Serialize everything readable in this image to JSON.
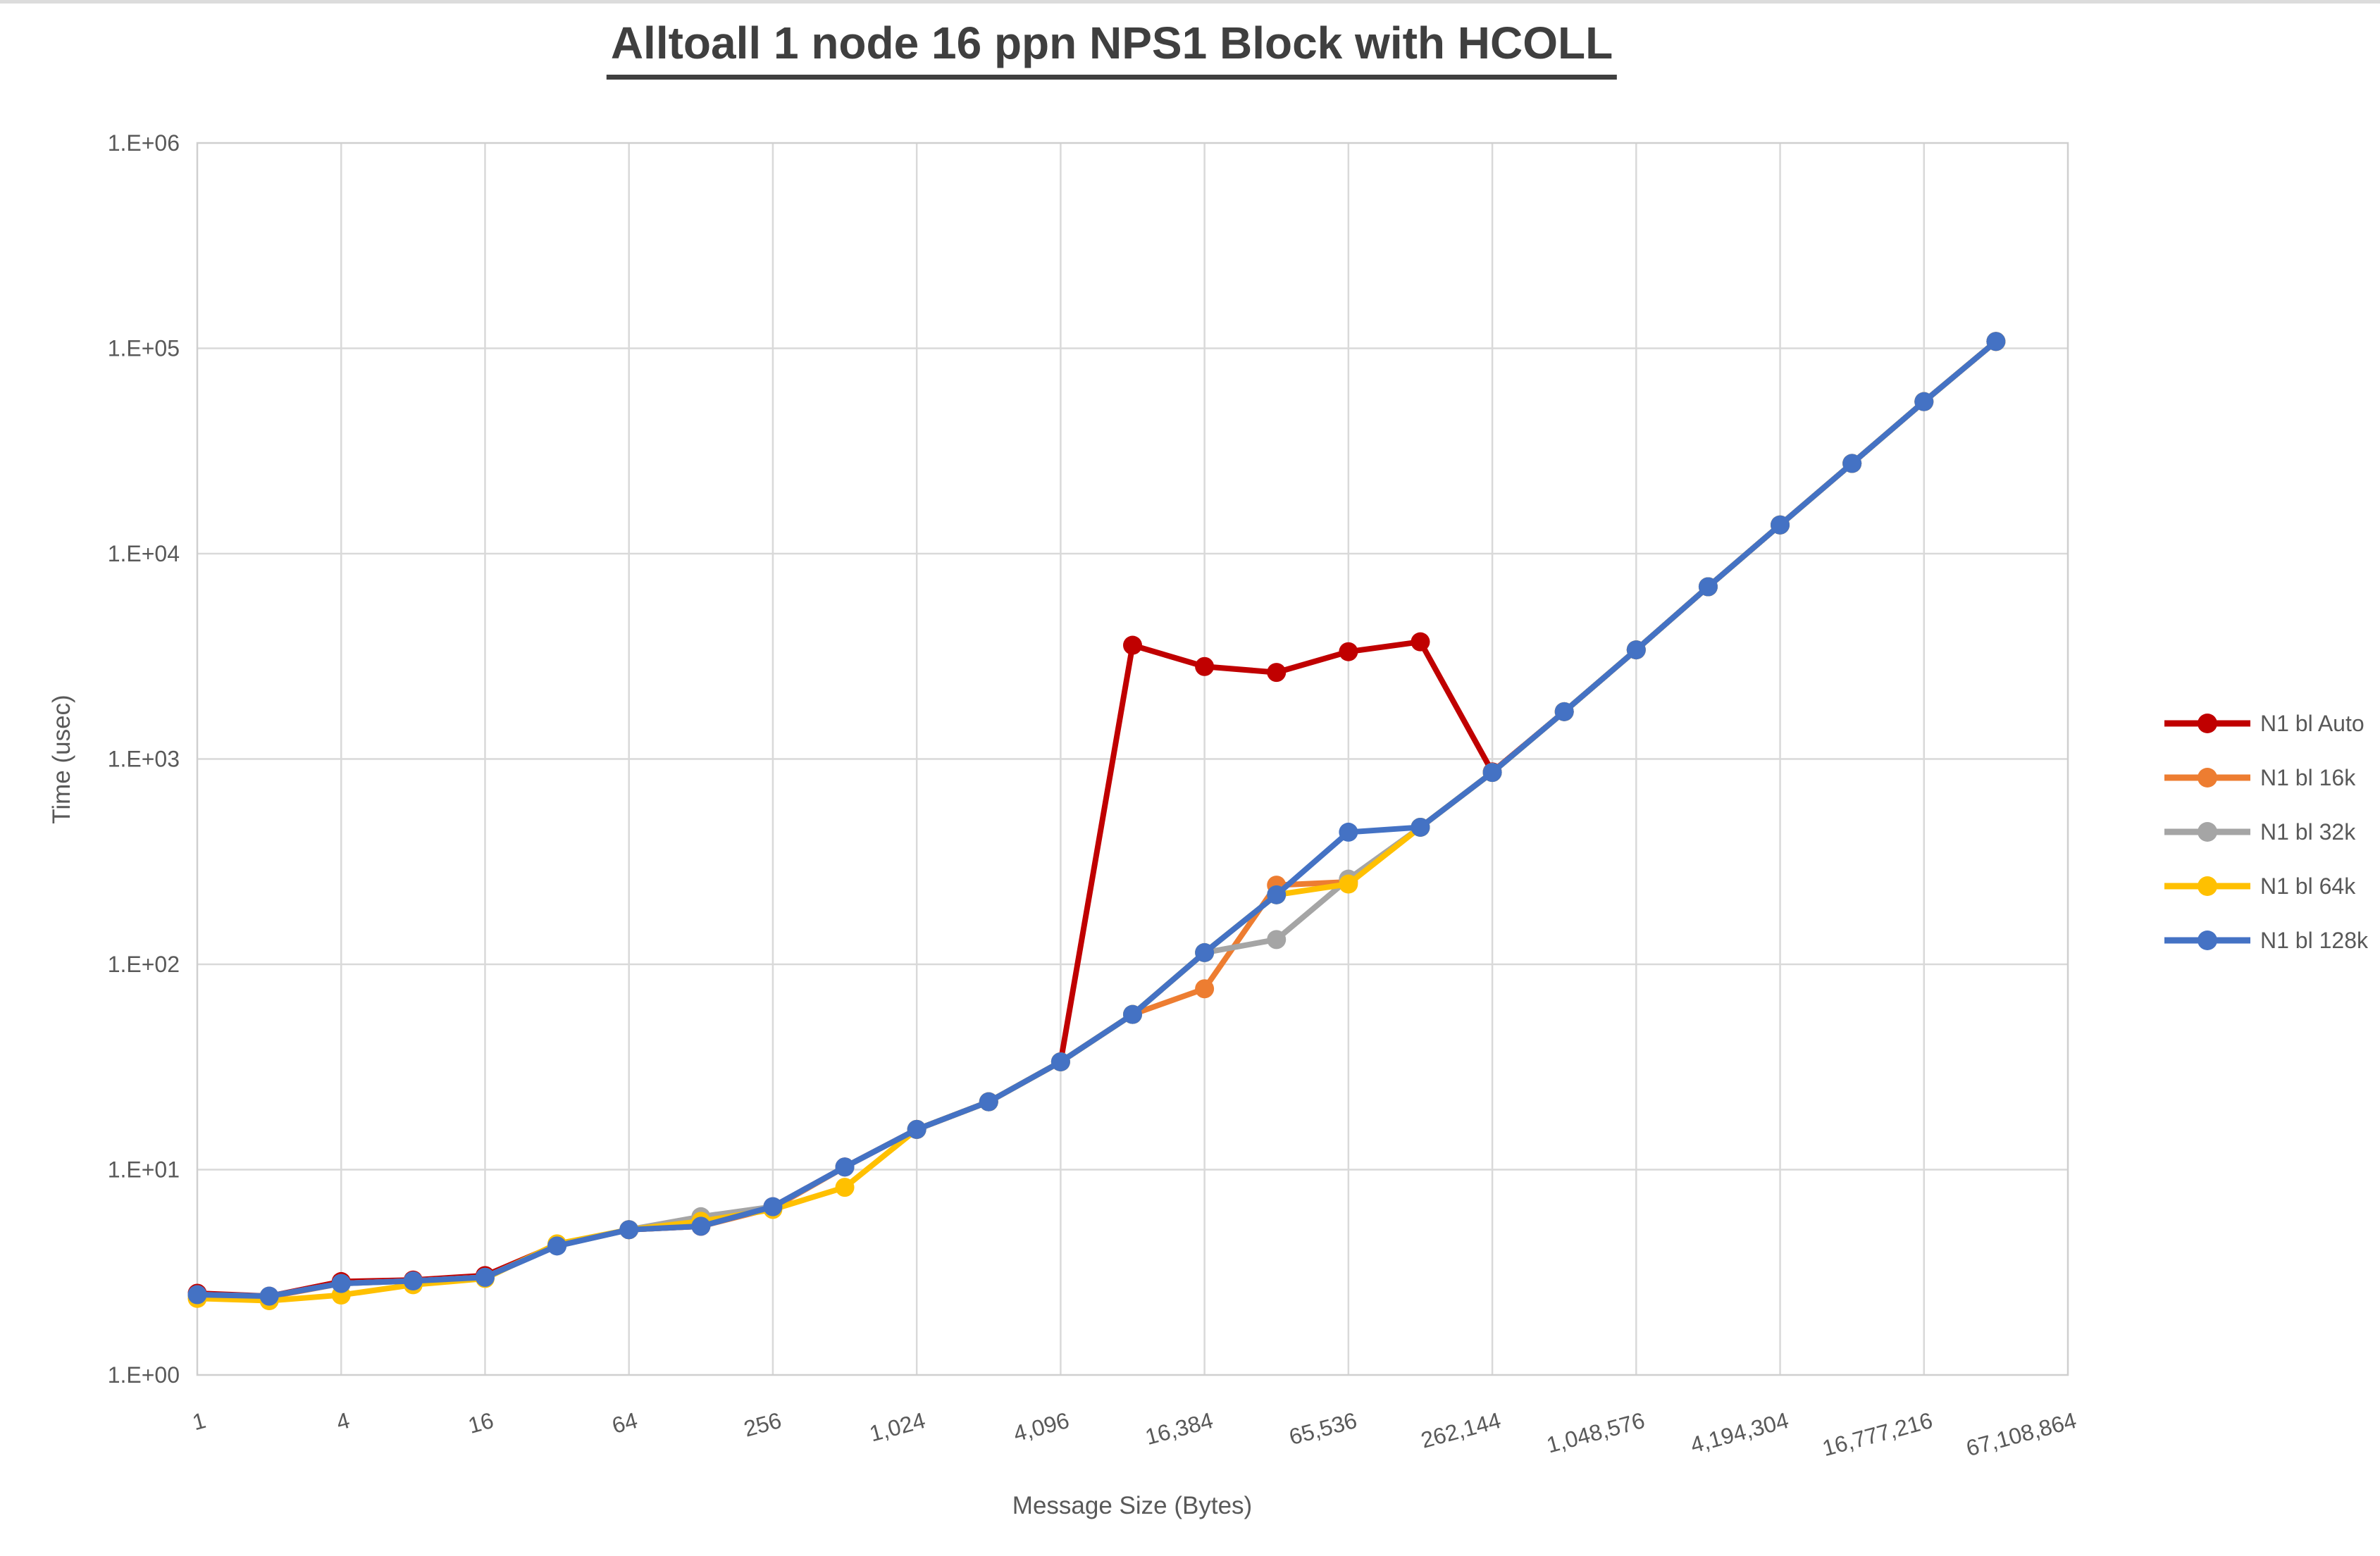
{
  "title": "Alltoall 1 node 16 ppn NPS1 Block with HCOLL",
  "axis_titles": {
    "x": "Message Size (Bytes)",
    "y": "Time (usec)"
  },
  "colors": {
    "gridline": "#d9d9d9",
    "plot_border": "#cfcfcf",
    "axis_text": "#595959",
    "title_text": "#3f3f3f",
    "background": "#ffffff"
  },
  "chart_data": {
    "type": "line",
    "title": "Alltoall 1 node 16 ppn NPS1 Block with HCOLL",
    "xlabel": "Message Size (Bytes)",
    "ylabel": "Time (usec)",
    "x_scale": "log2",
    "y_scale": "log10",
    "ylim": [
      1,
      1000000
    ],
    "xlim": [
      1,
      67108864
    ],
    "grid": true,
    "legend_position": "right",
    "y_tick_labels": [
      "1.E+00",
      "1.E+01",
      "1.E+02",
      "1.E+03",
      "1.E+04",
      "1.E+05",
      "1.E+06"
    ],
    "x_tick_labels": [
      "1",
      "4",
      "16",
      "64",
      "256",
      "1,024",
      "4,096",
      "16,384",
      "65,536",
      "262,144",
      "1,048,576",
      "4,194,304",
      "16,777,216",
      "67,108,864"
    ],
    "x": [
      1,
      2,
      4,
      8,
      16,
      32,
      64,
      128,
      256,
      512,
      1024,
      2048,
      4096,
      8192,
      16384,
      32768,
      65536,
      131072,
      262144,
      524288,
      1048576,
      2097152,
      4194304,
      8388608,
      16777216,
      33554432
    ],
    "series": [
      {
        "name": "N1 bl Auto",
        "color": "#C00000",
        "values": [
          2.5,
          2.42,
          2.85,
          2.9,
          3.05,
          4.3,
          5.1,
          5.3,
          6.6,
          10.3,
          15.7,
          21.4,
          33.5,
          3580,
          2820,
          2640,
          3330,
          3720,
          865,
          1700,
          3400,
          6900,
          13800,
          27500,
          55000,
          108000
        ]
      },
      {
        "name": "N1 bl 16k",
        "color": "#ED7D31",
        "values": [
          2.44,
          2.4,
          2.79,
          2.87,
          2.99,
          4.3,
          5.1,
          5.3,
          6.5,
          10.3,
          15.7,
          21.4,
          33.5,
          57,
          76,
          243,
          252,
          465,
          860,
          1700,
          3400,
          6900,
          13800,
          27500,
          55000,
          108000
        ]
      },
      {
        "name": "N1 bl 32k",
        "color": "#A5A5A5",
        "values": [
          2.46,
          2.42,
          2.79,
          2.87,
          2.99,
          4.25,
          5.1,
          5.9,
          6.6,
          10.3,
          15.7,
          21.4,
          33.5,
          57,
          114,
          132,
          260,
          465,
          860,
          1700,
          3400,
          6900,
          13800,
          27500,
          55000,
          108000
        ]
      },
      {
        "name": "N1 bl 64k",
        "color": "#FFC000",
        "values": [
          2.36,
          2.3,
          2.45,
          2.75,
          2.95,
          4.35,
          5.1,
          5.6,
          6.4,
          8.2,
          15.7,
          21.4,
          33.5,
          57,
          114,
          218,
          246,
          465,
          860,
          1700,
          3400,
          6900,
          13800,
          27500,
          55000,
          108000
        ]
      },
      {
        "name": "N1 bl 128k",
        "color": "#4472C4",
        "values": [
          2.46,
          2.42,
          2.79,
          2.87,
          2.99,
          4.25,
          5.1,
          5.3,
          6.6,
          10.3,
          15.7,
          21.4,
          33.5,
          57,
          114,
          218,
          440,
          465,
          860,
          1700,
          3400,
          6900,
          13800,
          27500,
          55000,
          108000
        ]
      }
    ]
  }
}
